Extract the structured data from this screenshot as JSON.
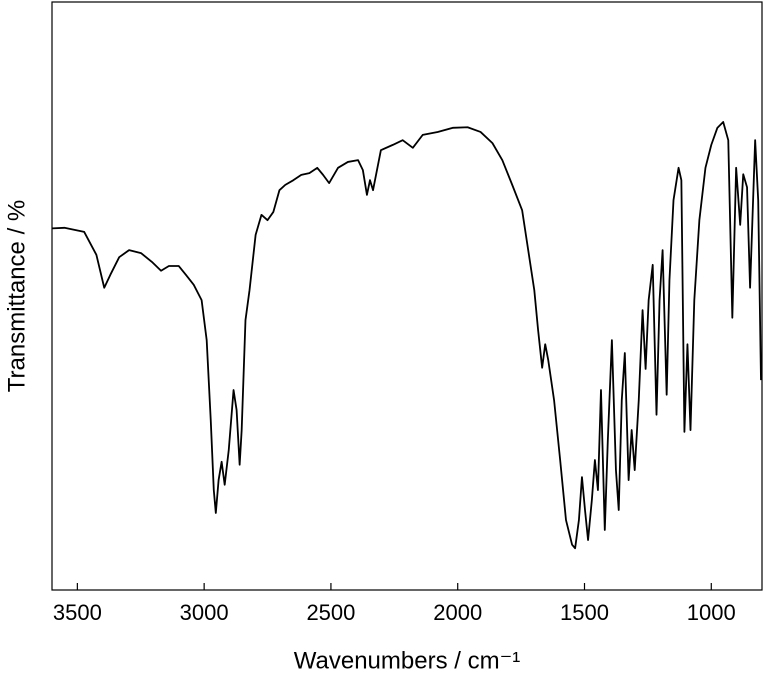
{
  "chart_data": {
    "type": "line",
    "xlabel": "Wavenumbers / cm⁻¹",
    "ylabel": "Transmittance / %",
    "xlim": [
      3600,
      800
    ],
    "xticks": [
      3500,
      3000,
      2500,
      2000,
      1500,
      1000
    ],
    "ylim": [
      0,
      100
    ],
    "series": [
      {
        "color": "#000000",
        "x": [
          3600,
          3551,
          3473,
          3425,
          3394,
          3370,
          3335,
          3296,
          3249,
          3206,
          3170,
          3139,
          3100,
          3072,
          3041,
          3010,
          2990,
          2974,
          2962,
          2954,
          2943,
          2931,
          2919,
          2903,
          2884,
          2872,
          2860,
          2852,
          2837,
          2821,
          2797,
          2774,
          2750,
          2727,
          2703,
          2680,
          2648,
          2617,
          2585,
          2554,
          2531,
          2507,
          2472,
          2433,
          2393,
          2374,
          2358,
          2346,
          2334,
          2303,
          2256,
          2217,
          2177,
          2138,
          2079,
          2020,
          1961,
          1910,
          1863,
          1824,
          1785,
          1746,
          1722,
          1698,
          1683,
          1667,
          1655,
          1643,
          1620,
          1596,
          1573,
          1549,
          1537,
          1522,
          1510,
          1498,
          1486,
          1471,
          1459,
          1447,
          1435,
          1420,
          1408,
          1392,
          1376,
          1365,
          1353,
          1341,
          1326,
          1314,
          1302,
          1286,
          1271,
          1259,
          1247,
          1231,
          1216,
          1204,
          1192,
          1176,
          1165,
          1149,
          1129,
          1118,
          1106,
          1094,
          1082,
          1067,
          1047,
          1023,
          1000,
          976,
          953,
          933,
          917,
          902,
          886,
          874,
          859,
          847,
          827,
          815,
          804
        ],
        "values": [
          61.5,
          61.6,
          60.9,
          57.0,
          51.4,
          53.6,
          56.6,
          57.8,
          57.3,
          55.8,
          54.3,
          55.1,
          55.1,
          53.6,
          51.9,
          49.3,
          42.5,
          28.9,
          17.0,
          13.1,
          18.7,
          21.8,
          17.9,
          23.8,
          34.0,
          30.6,
          21.3,
          27.2,
          45.9,
          51.0,
          60.4,
          63.8,
          62.9,
          64.3,
          68.0,
          68.9,
          69.7,
          70.6,
          70.9,
          71.8,
          70.6,
          69.2,
          71.8,
          72.8,
          73.1,
          71.4,
          67.2,
          69.7,
          68.0,
          74.8,
          75.7,
          76.5,
          75.2,
          77.4,
          77.9,
          78.6,
          78.7,
          77.9,
          76.0,
          73.1,
          68.9,
          64.6,
          57.8,
          51.0,
          44.2,
          37.8,
          41.8,
          39.1,
          32.3,
          22.1,
          11.9,
          7.7,
          7.1,
          11.9,
          19.2,
          13.6,
          8.5,
          15.3,
          22.1,
          17.0,
          34.0,
          10.2,
          25.5,
          42.5,
          20.4,
          13.6,
          32.3,
          40.3,
          18.7,
          27.2,
          20.4,
          32.3,
          47.6,
          37.6,
          49.3,
          55.3,
          29.8,
          49.3,
          57.8,
          33.2,
          52.7,
          66.3,
          71.8,
          69.7,
          26.9,
          41.8,
          27.2,
          49.3,
          62.9,
          71.8,
          75.7,
          78.6,
          79.6,
          76.5,
          46.3,
          71.8,
          62.1,
          70.7,
          68.5,
          51.4,
          76.5,
          66.3,
          35.7
        ]
      }
    ]
  }
}
